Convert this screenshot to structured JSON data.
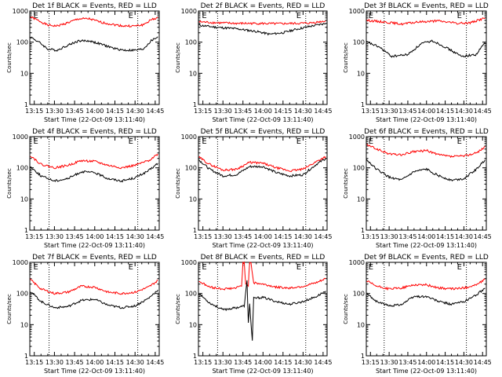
{
  "figure": {
    "x_ticks": [
      "13:15",
      "13:30",
      "13:45",
      "14:00",
      "14:15",
      "14:30",
      "14:45"
    ]
  },
  "chart_data": [
    {
      "type": "line",
      "title": "Det 1f BLACK = Events, RED = LLD",
      "xlabel": "Start Time (22-Oct-09 13:11:40)",
      "ylabel": "Counts/sec",
      "yscale": "log",
      "ylim": [
        1,
        1000
      ],
      "xlim": [
        "13:11:40",
        "14:48:00"
      ],
      "y_ticks": [
        "1",
        "10",
        "100",
        "1000"
      ],
      "x_ticks": [
        "13:15",
        "13:30",
        "13:45",
        "14:00",
        "14:15",
        "14:30",
        "14:45"
      ],
      "markers": [
        "13:26",
        "14:32"
      ],
      "marker_labels": [
        "E",
        "E"
      ],
      "grid": false,
      "series": [
        {
          "color": "#ff0000",
          "x": [
            "13:12",
            "13:20",
            "13:25",
            "13:32",
            "13:40",
            "13:48",
            "13:56",
            "14:05",
            "14:15",
            "14:22",
            "14:30",
            "14:36",
            "14:42",
            "14:47"
          ],
          "values": [
            650,
            450,
            350,
            330,
            420,
            560,
            560,
            430,
            360,
            330,
            330,
            360,
            520,
            620
          ]
        },
        {
          "color": "#000000",
          "x": [
            "13:12",
            "13:20",
            "13:25",
            "13:32",
            "13:40",
            "13:48",
            "13:56",
            "14:05",
            "14:15",
            "14:22",
            "14:30",
            "14:36",
            "14:42",
            "14:47"
          ],
          "values": [
            150,
            90,
            60,
            55,
            80,
            110,
            110,
            85,
            62,
            55,
            55,
            60,
            110,
            150
          ]
        }
      ]
    },
    {
      "type": "line",
      "title": "Det 2f BLACK = Events, RED = LLD",
      "xlabel": "Start Time (22-Oct-09 13:11:40)",
      "ylabel": "Counts/sec",
      "yscale": "log",
      "ylim": [
        1,
        1000
      ],
      "xlim": [
        "13:11:40",
        "14:48:00"
      ],
      "y_ticks": [
        "1",
        "10",
        "100",
        "1000"
      ],
      "x_ticks": [
        "13:15",
        "13:30",
        "13:45",
        "14:00",
        "14:15",
        "14:30",
        "14:45"
      ],
      "markers": [
        "13:26",
        "14:32"
      ],
      "marker_labels": [
        "E",
        "E"
      ],
      "grid": false,
      "series": [
        {
          "color": "#ff0000",
          "x": [
            "13:12",
            "13:25",
            "13:40",
            "13:55",
            "14:10",
            "14:25",
            "14:35",
            "14:47"
          ],
          "values": [
            450,
            420,
            400,
            400,
            390,
            400,
            410,
            480
          ]
        },
        {
          "color": "#000000",
          "x": [
            "13:12",
            "13:25",
            "13:40",
            "13:55",
            "14:05",
            "14:15",
            "14:25",
            "14:35",
            "14:47"
          ],
          "values": [
            350,
            300,
            270,
            220,
            180,
            200,
            260,
            320,
            400
          ]
        }
      ]
    },
    {
      "type": "line",
      "title": "Det 3f BLACK = Events, RED = LLD",
      "xlabel": "Start Time (22-Oct-09 13:11:40)",
      "ylabel": "Counts/sec",
      "yscale": "log",
      "ylim": [
        1,
        1000
      ],
      "xlim": [
        "13:11:40",
        "14:48:00"
      ],
      "y_ticks": [
        "1",
        "10",
        "100",
        "1000"
      ],
      "x_ticks": [
        "13:15",
        "13:30",
        "13:45",
        "14:00",
        "14:15",
        "14:30",
        "14:45"
      ],
      "markers": [
        "13:26",
        "14:32"
      ],
      "marker_labels": [
        "E",
        "E"
      ],
      "grid": false,
      "series": [
        {
          "color": "#ff0000",
          "x": [
            "13:12",
            "13:25",
            "13:40",
            "13:55",
            "14:10",
            "14:25",
            "14:35",
            "14:47"
          ],
          "values": [
            500,
            450,
            380,
            450,
            480,
            400,
            420,
            600
          ]
        },
        {
          "color": "#000000",
          "x": [
            "13:12",
            "13:22",
            "13:32",
            "13:45",
            "13:56",
            "14:05",
            "14:15",
            "14:28",
            "14:40",
            "14:47"
          ],
          "values": [
            100,
            70,
            35,
            40,
            90,
            110,
            70,
            35,
            40,
            100
          ]
        }
      ]
    },
    {
      "type": "line",
      "title": "Det 4f BLACK = Events, RED = LLD",
      "xlabel": "Start Time (22-Oct-09 13:11:40)",
      "ylabel": "Counts/sec",
      "yscale": "log",
      "ylim": [
        1,
        1000
      ],
      "xlim": [
        "13:11:40",
        "14:48:00"
      ],
      "y_ticks": [
        "1",
        "10",
        "100",
        "1000"
      ],
      "x_ticks": [
        "13:15",
        "13:30",
        "13:45",
        "14:00",
        "14:15",
        "14:30",
        "14:45"
      ],
      "markers": [
        "13:26",
        "14:32"
      ],
      "marker_labels": [
        "E",
        "E"
      ],
      "grid": false,
      "series": [
        {
          "color": "#ff0000",
          "x": [
            "13:12",
            "13:20",
            "13:30",
            "13:40",
            "13:50",
            "14:00",
            "14:10",
            "14:20",
            "14:30",
            "14:40",
            "14:47"
          ],
          "values": [
            250,
            130,
            100,
            120,
            170,
            160,
            120,
            100,
            120,
            170,
            280
          ]
        },
        {
          "color": "#000000",
          "x": [
            "13:12",
            "13:20",
            "13:30",
            "13:40",
            "13:50",
            "14:00",
            "14:10",
            "14:20",
            "14:30",
            "14:40",
            "14:47"
          ],
          "values": [
            110,
            55,
            38,
            45,
            75,
            70,
            45,
            38,
            48,
            80,
            140
          ]
        }
      ]
    },
    {
      "type": "line",
      "title": "Det 5f BLACK = Events, RED = LLD",
      "xlabel": "Start Time (22-Oct-09 13:11:40)",
      "ylabel": "Counts/sec",
      "yscale": "log",
      "ylim": [
        1,
        1000
      ],
      "xlim": [
        "13:11:40",
        "14:48:00"
      ],
      "y_ticks": [
        "1",
        "10",
        "100",
        "1000"
      ],
      "x_ticks": [
        "13:15",
        "13:30",
        "13:45",
        "14:00",
        "14:15",
        "14:30",
        "14:45"
      ],
      "markers": [
        "13:26",
        "14:32"
      ],
      "marker_labels": [
        "E",
        "E"
      ],
      "grid": false,
      "series": [
        {
          "color": "#ff0000",
          "x": [
            "13:12",
            "13:20",
            "13:30",
            "13:40",
            "13:50",
            "14:00",
            "14:10",
            "14:20",
            "14:30",
            "14:40",
            "14:47"
          ],
          "values": [
            220,
            130,
            85,
            90,
            150,
            140,
            100,
            80,
            90,
            160,
            230
          ]
        },
        {
          "color": "#000000",
          "x": [
            "13:12",
            "13:20",
            "13:30",
            "13:40",
            "13:50",
            "14:00",
            "14:10",
            "14:20",
            "14:30",
            "14:40",
            "14:47"
          ],
          "values": [
            180,
            90,
            55,
            60,
            110,
            110,
            70,
            55,
            60,
            130,
            200
          ]
        }
      ]
    },
    {
      "type": "line",
      "title": "Det 6f BLACK = Events, RED = LLD",
      "xlabel": "Start Time (22-Oct-09 13:11:40)",
      "ylabel": "Counts/sec",
      "yscale": "log",
      "ylim": [
        1,
        1000
      ],
      "xlim": [
        "13:11:40",
        "14:48:00"
      ],
      "y_ticks": [
        "1",
        "10",
        "100",
        "1000"
      ],
      "x_ticks": [
        "13:15",
        "13:30",
        "13:45",
        "14:00",
        "14:15",
        "14:30",
        "14:45"
      ],
      "markers": [
        "13:26",
        "14:32"
      ],
      "marker_labels": [
        "E",
        "E"
      ],
      "grid": false,
      "series": [
        {
          "color": "#ff0000",
          "x": [
            "13:12",
            "13:20",
            "13:30",
            "13:40",
            "13:50",
            "14:00",
            "14:10",
            "14:20",
            "14:30",
            "14:40",
            "14:47"
          ],
          "values": [
            550,
            400,
            280,
            260,
            330,
            360,
            260,
            230,
            240,
            300,
            480
          ]
        },
        {
          "color": "#000000",
          "x": [
            "13:12",
            "13:20",
            "13:30",
            "13:40",
            "13:50",
            "14:00",
            "14:10",
            "14:20",
            "14:30",
            "14:40",
            "14:47"
          ],
          "values": [
            180,
            90,
            50,
            40,
            75,
            90,
            55,
            40,
            45,
            90,
            180
          ]
        }
      ]
    },
    {
      "type": "line",
      "title": "Det 7f BLACK = Events, RED = LLD",
      "xlabel": "Start Time (22-Oct-09 13:11:40)",
      "ylabel": "Counts/sec",
      "yscale": "log",
      "ylim": [
        1,
        1000
      ],
      "xlim": [
        "13:11:40",
        "14:48:00"
      ],
      "y_ticks": [
        "1",
        "10",
        "100",
        "1000"
      ],
      "x_ticks": [
        "13:15",
        "13:30",
        "13:45",
        "14:00",
        "14:15",
        "14:30",
        "14:45"
      ],
      "markers": [
        "13:26",
        "14:32"
      ],
      "marker_labels": [
        "E",
        "E"
      ],
      "grid": false,
      "series": [
        {
          "color": "#ff0000",
          "x": [
            "13:12",
            "13:20",
            "13:30",
            "13:40",
            "13:50",
            "14:00",
            "14:10",
            "14:20",
            "14:30",
            "14:40",
            "14:47"
          ],
          "values": [
            280,
            140,
            100,
            110,
            170,
            160,
            110,
            100,
            110,
            160,
            260
          ]
        },
        {
          "color": "#000000",
          "x": [
            "13:12",
            "13:20",
            "13:30",
            "13:40",
            "13:50",
            "14:00",
            "14:10",
            "14:20",
            "14:30",
            "14:40",
            "14:47"
          ],
          "values": [
            120,
            55,
            35,
            38,
            60,
            65,
            42,
            35,
            40,
            70,
            130
          ]
        }
      ]
    },
    {
      "type": "line",
      "title": "Det 8f BLACK = Events, RED = LLD",
      "xlabel": "Start Time (22-Oct-09 13:11:40)",
      "ylabel": "Counts/sec",
      "yscale": "log",
      "ylim": [
        1,
        1000
      ],
      "xlim": [
        "13:11:40",
        "14:48:00"
      ],
      "y_ticks": [
        "1",
        "10",
        "100",
        "1000"
      ],
      "x_ticks": [
        "13:15",
        "13:30",
        "13:45",
        "14:00",
        "14:15",
        "14:30",
        "14:45"
      ],
      "markers": [
        "13:26",
        "14:32"
      ],
      "marker_labels": [
        "E",
        "E"
      ],
      "grid": false,
      "series": [
        {
          "color": "#ff0000",
          "x": [
            "13:12",
            "13:20",
            "13:30",
            "13:40",
            "13:44",
            "13:45",
            "13:46",
            "13:47",
            "13:49",
            "13:50",
            "13:51",
            "13:53",
            "14:00",
            "14:10",
            "14:20",
            "14:30",
            "14:40",
            "14:47"
          ],
          "values": [
            250,
            160,
            140,
            150,
            180,
            1000,
            1000,
            200,
            180,
            1000,
            1000,
            220,
            200,
            160,
            150,
            170,
            220,
            300
          ]
        },
        {
          "color": "#000000",
          "x": [
            "13:12",
            "13:20",
            "13:30",
            "13:40",
            "13:46",
            "13:48",
            "13:49",
            "13:50",
            "13:52",
            "13:53",
            "14:00",
            "14:10",
            "14:20",
            "14:30",
            "14:40",
            "14:47"
          ],
          "values": [
            100,
            50,
            30,
            35,
            40,
            250,
            12,
            45,
            3,
            70,
            75,
            55,
            45,
            55,
            80,
            120
          ]
        }
      ]
    },
    {
      "type": "line",
      "title": "Det 9f BLACK = Events, RED = LLD",
      "xlabel": "Start Time (22-Oct-09 13:11:40)",
      "ylabel": "Counts/sec",
      "yscale": "log",
      "ylim": [
        1,
        1000
      ],
      "xlim": [
        "13:11:40",
        "14:48:00"
      ],
      "y_ticks": [
        "1",
        "10",
        "100",
        "1000"
      ],
      "x_ticks": [
        "13:15",
        "13:30",
        "13:45",
        "14:00",
        "14:15",
        "14:30",
        "14:45"
      ],
      "markers": [
        "13:26",
        "14:32"
      ],
      "marker_labels": [
        "E",
        "E"
      ],
      "grid": false,
      "series": [
        {
          "color": "#ff0000",
          "x": [
            "13:12",
            "13:20",
            "13:30",
            "13:40",
            "13:50",
            "14:00",
            "14:10",
            "14:20",
            "14:30",
            "14:40",
            "14:47"
          ],
          "values": [
            250,
            170,
            140,
            150,
            190,
            190,
            150,
            140,
            150,
            190,
            280
          ]
        },
        {
          "color": "#000000",
          "x": [
            "13:12",
            "13:20",
            "13:30",
            "13:40",
            "13:50",
            "14:00",
            "14:10",
            "14:20",
            "14:30",
            "14:40",
            "14:47"
          ],
          "values": [
            100,
            55,
            40,
            45,
            80,
            80,
            55,
            45,
            55,
            90,
            150
          ]
        }
      ]
    }
  ]
}
